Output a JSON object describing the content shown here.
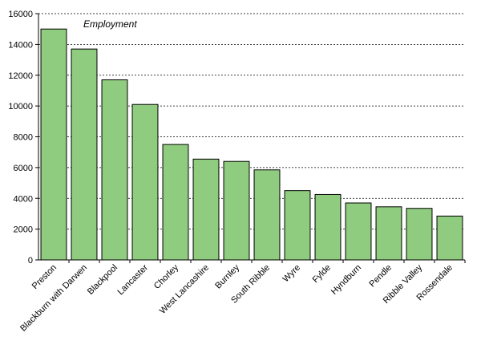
{
  "chart_data": {
    "type": "bar",
    "title": "Employment",
    "xlabel": "",
    "ylabel": "",
    "ylim": [
      0,
      16000
    ],
    "yticks": [
      0,
      2000,
      4000,
      6000,
      8000,
      10000,
      12000,
      14000,
      16000
    ],
    "grid": "horizontal dashed",
    "bar_color": "#8fcc7f",
    "bar_edge_color": "#000000",
    "categories": [
      "Preston",
      "Blackburn with Darwen",
      "Blackpool",
      "Lancaster",
      "Chorley",
      "West Lancashire",
      "Burnley",
      "South Ribble",
      "Wyre",
      "Fylde",
      "Hyndburn",
      "Pendle",
      "Ribble Valley",
      "Rossendale"
    ],
    "values": [
      15000,
      13700,
      11700,
      10100,
      7500,
      6550,
      6400,
      5850,
      4500,
      4250,
      3700,
      3450,
      3350,
      2850
    ]
  }
}
